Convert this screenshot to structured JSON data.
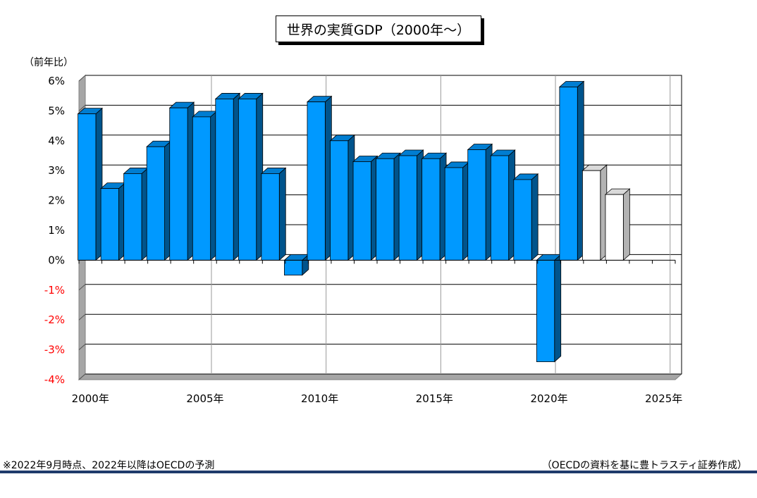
{
  "chart_data": {
    "type": "bar",
    "title": "世界の実質GDP（2000年～）",
    "ylabel": "（前年比）",
    "xlabel": "",
    "ylim": [
      -4,
      6
    ],
    "y_ticks": [
      "6%",
      "5%",
      "4%",
      "3%",
      "2%",
      "1%",
      "0%",
      "-1%",
      "-2%",
      "-3%",
      "-4%"
    ],
    "x_tick_labels": [
      "2000年",
      "2005年",
      "2010年",
      "2015年",
      "2020年",
      "2025年"
    ],
    "categories": [
      "2000",
      "2001",
      "2002",
      "2003",
      "2004",
      "2005",
      "2006",
      "2007",
      "2008",
      "2009",
      "2010",
      "2011",
      "2012",
      "2013",
      "2014",
      "2015",
      "2016",
      "2017",
      "2018",
      "2019",
      "2020",
      "2021",
      "2022",
      "2023"
    ],
    "values": [
      4.9,
      2.4,
      2.9,
      3.8,
      5.1,
      4.8,
      5.4,
      5.4,
      2.9,
      -0.5,
      5.3,
      4.0,
      3.3,
      3.4,
      3.5,
      3.4,
      3.1,
      3.7,
      3.5,
      2.7,
      -3.4,
      5.8,
      3.0,
      2.2
    ],
    "forecast_from": "2022",
    "colors": {
      "actual": "#0099ff",
      "forecast": "#ffffff",
      "negative_tick": "#ff0000",
      "grid": "#000000"
    },
    "grid": true,
    "legend": "none"
  },
  "footnote": "※2022年9月時点、2022年以降はOECDの予測",
  "source": "（OECDの資料を基に豊トラスティ証券作成）"
}
